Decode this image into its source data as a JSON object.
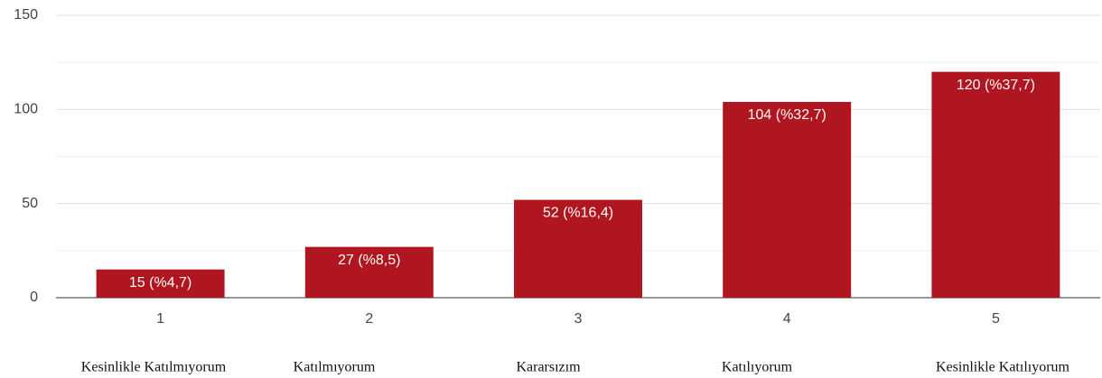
{
  "chart_data": {
    "type": "bar",
    "categories": [
      "1",
      "2",
      "3",
      "4",
      "5"
    ],
    "values": [
      15,
      27,
      52,
      104,
      120
    ],
    "value_labels": [
      "15 (%4,7)",
      "27 (%8,5)",
      "52 (%16,4)",
      "104 (%32,7)",
      "120 (%37,7)"
    ],
    "category_descriptions": [
      "Kesinlikle Katılmıyorum",
      "Katılmıyorum",
      "Kararsızım",
      "Katılıyorum",
      "Kesinlikle Katılıyorum"
    ],
    "color": "#b01620",
    "ylim": [
      0,
      150
    ],
    "yticks": [
      0,
      50,
      100,
      150
    ],
    "minor_yticks": [
      25,
      75,
      125
    ],
    "grid": true
  }
}
